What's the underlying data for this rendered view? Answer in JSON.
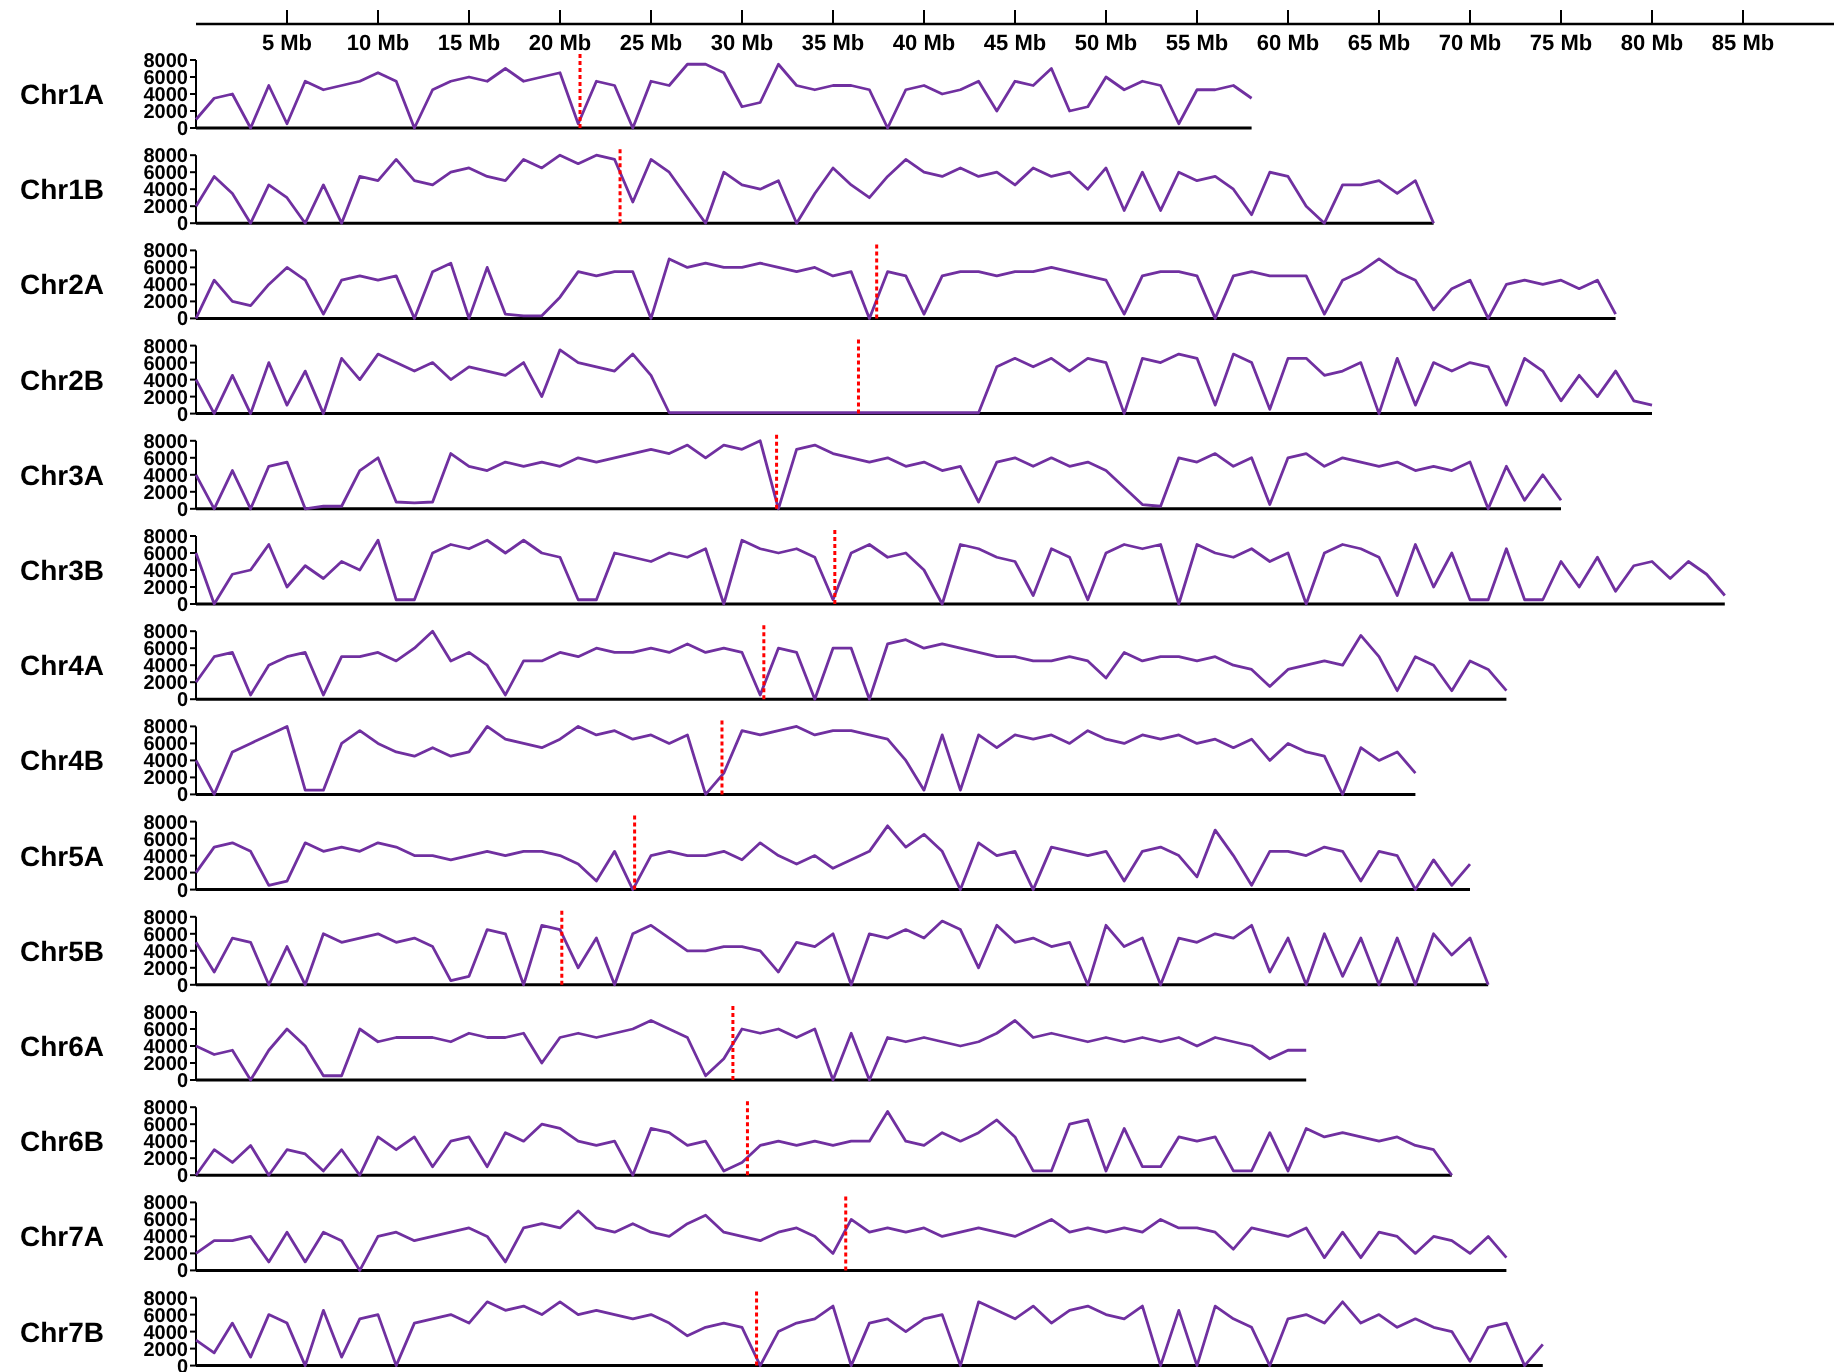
{
  "chart_data": [
    {
      "type": "line",
      "title": "Chr1A",
      "color": "#7030a0",
      "xlim": [
        0,
        90
      ],
      "ylim": [
        0,
        8000
      ],
      "yticks": [
        0,
        2000,
        4000,
        6000,
        8000
      ],
      "xticks": [
        {
          "value": 5,
          "label": "5 Mb"
        },
        {
          "value": 10,
          "label": "10 Mb"
        },
        {
          "value": 15,
          "label": "15 Mb"
        },
        {
          "value": 20,
          "label": "20 Mb"
        },
        {
          "value": 25,
          "label": "25 Mb"
        },
        {
          "value": 30,
          "label": "30 Mb"
        },
        {
          "value": 35,
          "label": "35 Mb"
        },
        {
          "value": 40,
          "label": "40 Mb"
        },
        {
          "value": 45,
          "label": "45 Mb"
        },
        {
          "value": 50,
          "label": "50 Mb"
        },
        {
          "value": 55,
          "label": "55 Mb"
        },
        {
          "value": 60,
          "label": "60 Mb"
        },
        {
          "value": 65,
          "label": "65 Mb"
        },
        {
          "value": 70,
          "label": "70 Mb"
        },
        {
          "value": 75,
          "label": "75 Mb"
        },
        {
          "value": 80,
          "label": "80 Mb"
        },
        {
          "value": 85,
          "label": "85 Mb"
        }
      ],
      "ref_lines": [
        {
          "axis": "x",
          "value": 21.1,
          "color": "#ff0000",
          "line_style": "dotted"
        }
      ],
      "x": [
        0,
        1,
        2,
        3,
        4,
        5,
        6,
        7,
        8,
        9,
        10,
        11,
        12,
        13,
        14,
        15,
        16,
        17,
        18,
        19,
        20,
        21,
        22,
        23,
        24,
        25,
        26,
        27,
        28,
        29,
        30,
        31,
        32,
        33,
        34,
        35,
        36,
        37,
        38,
        39,
        40,
        41,
        42,
        43,
        44,
        45,
        46,
        47,
        48,
        49,
        50,
        51,
        52,
        53,
        54,
        55,
        56,
        57,
        58
      ],
      "values": [
        1000,
        3500,
        4000,
        0,
        5000,
        500,
        5500,
        4500,
        5000,
        5500,
        6500,
        5500,
        0,
        4500,
        5500,
        6000,
        5500,
        7000,
        5500,
        6000,
        6500,
        500,
        5500,
        5000,
        0,
        5500,
        5000,
        7500,
        7500,
        6500,
        2500,
        3000,
        7500,
        5000,
        4500,
        5000,
        5000,
        4500,
        0,
        4500,
        5000,
        4000,
        4500,
        5500,
        2000,
        5500,
        5000,
        7000,
        2000,
        2500,
        6000,
        4500,
        5500,
        5000,
        500,
        4500,
        4500,
        5000,
        3500
      ]
    },
    {
      "type": "line",
      "title": "Chr1B",
      "color": "#7030a0",
      "xlim": [
        0,
        90
      ],
      "ylim": [
        0,
        8000
      ],
      "yticks": [
        0,
        2000,
        4000,
        6000,
        8000
      ],
      "tick_labels": "y",
      "ref_lines": [
        {
          "axis": "x",
          "value": 23.3,
          "color": "#ff0000",
          "line_style": "dotted"
        }
      ],
      "x": [
        0,
        1,
        2,
        3,
        4,
        5,
        6,
        7,
        8,
        9,
        10,
        11,
        12,
        13,
        14,
        15,
        16,
        17,
        18,
        19,
        20,
        21,
        22,
        23,
        24,
        25,
        26,
        27,
        28,
        29,
        30,
        31,
        32,
        33,
        34,
        35,
        36,
        37,
        38,
        39,
        40,
        41,
        42,
        43,
        44,
        45,
        46,
        47,
        48,
        49,
        50,
        51,
        52,
        53,
        54,
        55,
        56,
        57,
        58,
        59,
        60,
        61,
        62,
        63,
        64,
        65,
        66,
        67,
        68
      ],
      "values": [
        2000,
        5500,
        3500,
        0,
        4500,
        3000,
        0,
        4500,
        0,
        5500,
        5000,
        7500,
        5000,
        4500,
        6000,
        6500,
        5500,
        5000,
        7500,
        6500,
        8000,
        7000,
        8000,
        7500,
        2500,
        7500,
        6000,
        3000,
        0,
        6000,
        4500,
        4000,
        5000,
        0,
        3500,
        6500,
        4500,
        3000,
        5500,
        7500,
        6000,
        5500,
        6500,
        5500,
        6000,
        4500,
        6500,
        5500,
        6000,
        4000,
        6500,
        1500,
        6000,
        1500,
        6000,
        5000,
        5500,
        4000,
        1000,
        6000,
        5500,
        2000,
        0,
        4500,
        4500,
        5000,
        3500,
        5000,
        0
      ]
    },
    {
      "type": "line",
      "title": "Chr2A",
      "color": "#7030a0",
      "xlim": [
        0,
        90
      ],
      "ylim": [
        0,
        8000
      ],
      "yticks": [
        0,
        2000,
        4000,
        6000,
        8000
      ],
      "tick_labels": "y",
      "ref_lines": [
        {
          "axis": "x",
          "value": 37.4,
          "color": "#ff0000",
          "line_style": "dotted"
        }
      ],
      "x": [
        0,
        1,
        2,
        3,
        4,
        5,
        6,
        7,
        8,
        9,
        10,
        11,
        12,
        13,
        14,
        15,
        16,
        17,
        18,
        19,
        20,
        21,
        22,
        23,
        24,
        25,
        26,
        27,
        28,
        29,
        30,
        31,
        32,
        33,
        34,
        35,
        36,
        37,
        38,
        39,
        40,
        41,
        42,
        43,
        44,
        45,
        46,
        47,
        48,
        49,
        50,
        51,
        52,
        53,
        54,
        55,
        56,
        57,
        58,
        59,
        60,
        61,
        62,
        63,
        64,
        65,
        66,
        67,
        68,
        69,
        70,
        71,
        72,
        73,
        74,
        75,
        76,
        77,
        78
      ],
      "values": [
        0,
        4500,
        2000,
        1500,
        4000,
        6000,
        4500,
        500,
        4500,
        5000,
        4500,
        5000,
        0,
        5500,
        6500,
        0,
        6000,
        500,
        300,
        300,
        2500,
        5500,
        5000,
        5500,
        5500,
        0,
        7000,
        6000,
        6500,
        6000,
        6000,
        6500,
        6000,
        5500,
        6000,
        5000,
        5500,
        0,
        5500,
        5000,
        500,
        5000,
        5500,
        5500,
        5000,
        5500,
        5500,
        6000,
        5500,
        5000,
        4500,
        500,
        5000,
        5500,
        5500,
        5000,
        0,
        5000,
        5500,
        5000,
        5000,
        5000,
        500,
        4500,
        5500,
        7000,
        5500,
        4500,
        1000,
        3500,
        4500,
        0,
        4000,
        4500,
        4000,
        4500,
        3500,
        4500,
        500
      ]
    },
    {
      "type": "line",
      "title": "Chr2B",
      "color": "#7030a0",
      "xlim": [
        0,
        90
      ],
      "ylim": [
        0,
        8000
      ],
      "yticks": [
        0,
        2000,
        4000,
        6000,
        8000
      ],
      "tick_labels": "y",
      "ref_lines": [
        {
          "axis": "x",
          "value": 36.4,
          "color": "#ff0000",
          "line_style": "dotted"
        }
      ],
      "x": [
        0,
        1,
        2,
        3,
        4,
        5,
        6,
        7,
        8,
        9,
        10,
        11,
        12,
        13,
        14,
        15,
        16,
        17,
        18,
        19,
        20,
        21,
        22,
        23,
        24,
        25,
        26,
        43,
        44,
        45,
        46,
        47,
        48,
        49,
        50,
        51,
        52,
        53,
        54,
        55,
        56,
        57,
        58,
        59,
        60,
        61,
        62,
        63,
        64,
        65,
        66,
        67,
        68,
        69,
        70,
        71,
        72,
        73,
        74,
        75,
        76,
        77,
        78,
        79,
        80
      ],
      "values": [
        4000,
        0,
        4500,
        0,
        6000,
        1000,
        5000,
        0,
        6500,
        4000,
        7000,
        6000,
        5000,
        6000,
        4000,
        5500,
        5000,
        4500,
        6000,
        2000,
        7500,
        6000,
        5500,
        5000,
        7000,
        4500,
        100,
        100,
        5500,
        6500,
        5500,
        6500,
        5000,
        6500,
        6000,
        0,
        6500,
        6000,
        7000,
        6500,
        1000,
        7000,
        6000,
        500,
        6500,
        6500,
        4500,
        5000,
        6000,
        0,
        6500,
        1000,
        6000,
        5000,
        6000,
        5500,
        1000,
        6500,
        5000,
        1500,
        4500,
        2000,
        5000,
        1500,
        1000
      ]
    },
    {
      "type": "line",
      "title": "Chr3A",
      "color": "#7030a0",
      "xlim": [
        0,
        90
      ],
      "ylim": [
        0,
        8000
      ],
      "yticks": [
        0,
        2000,
        4000,
        6000,
        8000
      ],
      "tick_labels": "y",
      "ref_lines": [
        {
          "axis": "x",
          "value": 31.9,
          "color": "#ff0000",
          "line_style": "dotted"
        }
      ],
      "x": [
        0,
        1,
        2,
        3,
        4,
        5,
        6,
        7,
        8,
        9,
        10,
        11,
        12,
        13,
        14,
        15,
        16,
        17,
        18,
        19,
        20,
        21,
        22,
        23,
        24,
        25,
        26,
        27,
        28,
        29,
        30,
        31,
        32,
        33,
        34,
        35,
        36,
        37,
        38,
        39,
        40,
        41,
        42,
        43,
        44,
        45,
        46,
        47,
        48,
        49,
        50,
        51,
        52,
        53,
        54,
        55,
        56,
        57,
        58,
        59,
        60,
        61,
        62,
        63,
        64,
        65,
        66,
        67,
        68,
        69,
        70,
        71,
        72,
        73,
        74,
        75
      ],
      "values": [
        4000,
        0,
        4500,
        0,
        5000,
        5500,
        0,
        300,
        300,
        4500,
        6000,
        800,
        700,
        800,
        6500,
        5000,
        4500,
        5500,
        5000,
        5500,
        5000,
        6000,
        5500,
        6000,
        6500,
        7000,
        6500,
        7500,
        6000,
        7500,
        7000,
        8000,
        0,
        7000,
        7500,
        6500,
        6000,
        5500,
        6000,
        5000,
        5500,
        4500,
        5000,
        800,
        5500,
        6000,
        5000,
        6000,
        5000,
        5500,
        4500,
        2500,
        500,
        300,
        6000,
        5500,
        6500,
        5000,
        6000,
        500,
        6000,
        6500,
        5000,
        6000,
        5500,
        5000,
        5500,
        4500,
        5000,
        4500,
        5500,
        0,
        5000,
        1000,
        4000,
        1000
      ]
    },
    {
      "type": "line",
      "title": "Chr3B",
      "color": "#7030a0",
      "xlim": [
        0,
        90
      ],
      "ylim": [
        0,
        8000
      ],
      "yticks": [
        0,
        2000,
        4000,
        6000,
        8000
      ],
      "tick_labels": "y",
      "ref_lines": [
        {
          "axis": "x",
          "value": 35.1,
          "color": "#ff0000",
          "line_style": "dotted"
        }
      ],
      "x": [
        0,
        1,
        2,
        3,
        4,
        5,
        6,
        7,
        8,
        9,
        10,
        11,
        12,
        13,
        14,
        15,
        16,
        17,
        18,
        19,
        20,
        21,
        22,
        23,
        24,
        25,
        26,
        27,
        28,
        29,
        30,
        31,
        32,
        33,
        34,
        35,
        36,
        37,
        38,
        39,
        40,
        41,
        42,
        43,
        44,
        45,
        46,
        47,
        48,
        49,
        50,
        51,
        52,
        53,
        54,
        55,
        56,
        57,
        58,
        59,
        60,
        61,
        62,
        63,
        64,
        65,
        66,
        67,
        68,
        69,
        70,
        71,
        72,
        73,
        74,
        75,
        76,
        77,
        78,
        79,
        80,
        81,
        82,
        83,
        84
      ],
      "values": [
        6000,
        0,
        3500,
        4000,
        7000,
        2000,
        4500,
        3000,
        5000,
        4000,
        7500,
        500,
        500,
        6000,
        7000,
        6500,
        7500,
        6000,
        7500,
        6000,
        5500,
        500,
        500,
        6000,
        5500,
        5000,
        6000,
        5500,
        6500,
        0,
        7500,
        6500,
        6000,
        6500,
        5500,
        500,
        6000,
        7000,
        5500,
        6000,
        4000,
        0,
        7000,
        6500,
        5500,
        5000,
        1000,
        6500,
        5500,
        500,
        6000,
        7000,
        6500,
        7000,
        0,
        7000,
        6000,
        5500,
        6500,
        5000,
        6000,
        0,
        6000,
        7000,
        6500,
        5500,
        1000,
        7000,
        2000,
        6000,
        500,
        500,
        6500,
        500,
        500,
        5000,
        2000,
        5500,
        1500,
        4500,
        5000,
        3000,
        5000,
        3500,
        1000
      ]
    },
    {
      "type": "line",
      "title": "Chr4A",
      "color": "#7030a0",
      "xlim": [
        0,
        90
      ],
      "ylim": [
        0,
        8000
      ],
      "yticks": [
        0,
        2000,
        4000,
        6000,
        8000
      ],
      "tick_labels": "y",
      "ref_lines": [
        {
          "axis": "x",
          "value": 31.2,
          "color": "#ff0000",
          "line_style": "dotted"
        }
      ],
      "x": [
        0,
        1,
        2,
        3,
        4,
        5,
        6,
        7,
        8,
        9,
        10,
        11,
        12,
        13,
        14,
        15,
        16,
        17,
        18,
        19,
        20,
        21,
        22,
        23,
        24,
        25,
        26,
        27,
        28,
        29,
        30,
        31,
        32,
        33,
        34,
        35,
        36,
        37,
        38,
        39,
        40,
        41,
        42,
        43,
        44,
        45,
        46,
        47,
        48,
        49,
        50,
        51,
        52,
        53,
        54,
        55,
        56,
        57,
        58,
        59,
        60,
        61,
        62,
        63,
        64,
        65,
        66,
        67,
        68,
        69,
        70,
        71,
        72
      ],
      "values": [
        2000,
        5000,
        5500,
        500,
        4000,
        5000,
        5500,
        500,
        5000,
        5000,
        5500,
        4500,
        6000,
        8000,
        4500,
        5500,
        4000,
        500,
        4500,
        4500,
        5500,
        5000,
        6000,
        5500,
        5500,
        6000,
        5500,
        6500,
        5500,
        6000,
        5500,
        500,
        6000,
        5500,
        0,
        6000,
        6000,
        0,
        6500,
        7000,
        6000,
        6500,
        6000,
        5500,
        5000,
        5000,
        4500,
        4500,
        5000,
        4500,
        2500,
        5500,
        4500,
        5000,
        5000,
        4500,
        5000,
        4000,
        3500,
        1500,
        3500,
        4000,
        4500,
        4000,
        7500,
        5000,
        1000,
        5000,
        4000,
        1000,
        4500,
        3500,
        1000
      ]
    },
    {
      "type": "line",
      "title": "Chr4B",
      "color": "#7030a0",
      "xlim": [
        0,
        90
      ],
      "ylim": [
        0,
        8000
      ],
      "yticks": [
        0,
        2000,
        4000,
        6000,
        8000
      ],
      "tick_labels": "y",
      "ref_lines": [
        {
          "axis": "x",
          "value": 28.9,
          "color": "#ff0000",
          "line_style": "dotted"
        }
      ],
      "x": [
        0,
        1,
        2,
        3,
        4,
        5,
        6,
        7,
        8,
        9,
        10,
        11,
        12,
        13,
        14,
        15,
        16,
        17,
        18,
        19,
        20,
        21,
        22,
        23,
        24,
        25,
        26,
        27,
        28,
        29,
        30,
        31,
        32,
        33,
        34,
        35,
        36,
        37,
        38,
        39,
        40,
        41,
        42,
        43,
        44,
        45,
        46,
        47,
        48,
        49,
        50,
        51,
        52,
        53,
        54,
        55,
        56,
        57,
        58,
        59,
        60,
        61,
        62,
        63,
        64,
        65,
        66,
        67
      ],
      "values": [
        4000,
        0,
        5000,
        6000,
        7000,
        8000,
        500,
        500,
        6000,
        7500,
        6000,
        5000,
        4500,
        5500,
        4500,
        5000,
        8000,
        6500,
        6000,
        5500,
        6500,
        8000,
        7000,
        7500,
        6500,
        7000,
        6000,
        7000,
        0,
        2500,
        7500,
        7000,
        7500,
        8000,
        7000,
        7500,
        7500,
        7000,
        6500,
        4000,
        500,
        7000,
        500,
        7000,
        5500,
        7000,
        6500,
        7000,
        6000,
        7500,
        6500,
        6000,
        7000,
        6500,
        7000,
        6000,
        6500,
        5500,
        6500,
        4000,
        6000,
        5000,
        4500,
        0,
        5500,
        4000,
        5000,
        2500
      ]
    },
    {
      "type": "line",
      "title": "Chr5A",
      "color": "#7030a0",
      "xlim": [
        0,
        90
      ],
      "ylim": [
        0,
        8000
      ],
      "yticks": [
        0,
        2000,
        4000,
        6000,
        8000
      ],
      "tick_labels": "y",
      "ref_lines": [
        {
          "axis": "x",
          "value": 24.1,
          "color": "#ff0000",
          "line_style": "dotted"
        }
      ],
      "x": [
        0,
        1,
        2,
        3,
        4,
        5,
        6,
        7,
        8,
        9,
        10,
        11,
        12,
        13,
        14,
        15,
        16,
        17,
        18,
        19,
        20,
        21,
        22,
        23,
        24,
        25,
        26,
        27,
        28,
        29,
        30,
        31,
        32,
        33,
        34,
        35,
        36,
        37,
        38,
        39,
        40,
        41,
        42,
        43,
        44,
        45,
        46,
        47,
        48,
        49,
        50,
        51,
        52,
        53,
        54,
        55,
        56,
        57,
        58,
        59,
        60,
        61,
        62,
        63,
        64,
        65,
        66,
        67,
        68,
        69,
        70
      ],
      "values": [
        2000,
        5000,
        5500,
        4500,
        500,
        1000,
        5500,
        4500,
        5000,
        4500,
        5500,
        5000,
        4000,
        4000,
        3500,
        4000,
        4500,
        4000,
        4500,
        4500,
        4000,
        3000,
        1000,
        4500,
        0,
        4000,
        4500,
        4000,
        4000,
        4500,
        3500,
        5500,
        4000,
        3000,
        4000,
        2500,
        3500,
        4500,
        7500,
        5000,
        6500,
        4500,
        0,
        5500,
        4000,
        4500,
        0,
        5000,
        4500,
        4000,
        4500,
        1000,
        4500,
        5000,
        4000,
        1500,
        7000,
        4000,
        500,
        4500,
        4500,
        4000,
        5000,
        4500,
        1000,
        4500,
        4000,
        0,
        3500,
        500,
        3000
      ]
    },
    {
      "type": "line",
      "title": "Chr5B",
      "color": "#7030a0",
      "xlim": [
        0,
        90
      ],
      "ylim": [
        0,
        8000
      ],
      "yticks": [
        0,
        2000,
        4000,
        6000,
        8000
      ],
      "tick_labels": "y",
      "ref_lines": [
        {
          "axis": "x",
          "value": 20.1,
          "color": "#ff0000",
          "line_style": "dotted"
        }
      ],
      "x": [
        0,
        1,
        2,
        3,
        4,
        5,
        6,
        7,
        8,
        9,
        10,
        11,
        12,
        13,
        14,
        15,
        16,
        17,
        18,
        19,
        20,
        21,
        22,
        23,
        24,
        25,
        26,
        27,
        28,
        29,
        30,
        31,
        32,
        33,
        34,
        35,
        36,
        37,
        38,
        39,
        40,
        41,
        42,
        43,
        44,
        45,
        46,
        47,
        48,
        49,
        50,
        51,
        52,
        53,
        54,
        55,
        56,
        57,
        58,
        59,
        60,
        61,
        62,
        63,
        64,
        65,
        66,
        67,
        68,
        69,
        70,
        71
      ],
      "values": [
        5000,
        1500,
        5500,
        5000,
        0,
        4500,
        0,
        6000,
        5000,
        5500,
        6000,
        5000,
        5500,
        4500,
        500,
        1000,
        6500,
        6000,
        0,
        7000,
        6500,
        2000,
        5500,
        0,
        6000,
        7000,
        5500,
        4000,
        4000,
        4500,
        4500,
        4000,
        1500,
        5000,
        4500,
        6000,
        0,
        6000,
        5500,
        6500,
        5500,
        7500,
        6500,
        2000,
        7000,
        5000,
        5500,
        4500,
        5000,
        0,
        7000,
        4500,
        5500,
        0,
        5500,
        5000,
        6000,
        5500,
        7000,
        1500,
        5500,
        0,
        6000,
        1000,
        5500,
        0,
        5500,
        0,
        6000,
        3500,
        5500,
        0
      ]
    },
    {
      "type": "line",
      "title": "Chr6A",
      "color": "#7030a0",
      "xlim": [
        0,
        90
      ],
      "ylim": [
        0,
        8000
      ],
      "yticks": [
        0,
        2000,
        4000,
        6000,
        8000
      ],
      "tick_labels": "y",
      "ref_lines": [
        {
          "axis": "x",
          "value": 29.5,
          "color": "#ff0000",
          "line_style": "dotted"
        }
      ],
      "x": [
        0,
        1,
        2,
        3,
        4,
        5,
        6,
        7,
        8,
        9,
        10,
        11,
        12,
        13,
        14,
        15,
        16,
        17,
        18,
        19,
        20,
        21,
        22,
        23,
        24,
        25,
        26,
        27,
        28,
        29,
        30,
        31,
        32,
        33,
        34,
        35,
        36,
        37,
        38,
        39,
        40,
        41,
        42,
        43,
        44,
        45,
        46,
        47,
        48,
        49,
        50,
        51,
        52,
        53,
        54,
        55,
        56,
        57,
        58,
        59,
        60,
        61
      ],
      "values": [
        4000,
        3000,
        3500,
        0,
        3500,
        6000,
        4000,
        500,
        500,
        6000,
        4500,
        5000,
        5000,
        5000,
        4500,
        5500,
        5000,
        5000,
        5500,
        2000,
        5000,
        5500,
        5000,
        5500,
        6000,
        7000,
        6000,
        5000,
        500,
        2500,
        6000,
        5500,
        6000,
        5000,
        6000,
        0,
        5500,
        0,
        5000,
        4500,
        5000,
        4500,
        4000,
        4500,
        5500,
        7000,
        5000,
        5500,
        5000,
        4500,
        5000,
        4500,
        5000,
        4500,
        5000,
        4000,
        5000,
        4500,
        4000,
        2500,
        3500,
        3500
      ]
    },
    {
      "type": "line",
      "title": "Chr6B",
      "color": "#7030a0",
      "xlim": [
        0,
        90
      ],
      "ylim": [
        0,
        8000
      ],
      "yticks": [
        0,
        2000,
        4000,
        6000,
        8000
      ],
      "tick_labels": "y",
      "ref_lines": [
        {
          "axis": "x",
          "value": 30.3,
          "color": "#ff0000",
          "line_style": "dotted"
        }
      ],
      "x": [
        0,
        1,
        2,
        3,
        4,
        5,
        6,
        7,
        8,
        9,
        10,
        11,
        12,
        13,
        14,
        15,
        16,
        17,
        18,
        19,
        20,
        21,
        22,
        23,
        24,
        25,
        26,
        27,
        28,
        29,
        30,
        31,
        32,
        33,
        34,
        35,
        36,
        37,
        38,
        39,
        40,
        41,
        42,
        43,
        44,
        45,
        46,
        47,
        48,
        49,
        50,
        51,
        52,
        53,
        54,
        55,
        56,
        57,
        58,
        59,
        60,
        61,
        62,
        63,
        64,
        65,
        66,
        67,
        68,
        69
      ],
      "values": [
        0,
        3000,
        1500,
        3500,
        0,
        3000,
        2500,
        500,
        3000,
        0,
        4500,
        3000,
        4500,
        1000,
        4000,
        4500,
        1000,
        5000,
        4000,
        6000,
        5500,
        4000,
        3500,
        4000,
        0,
        5500,
        5000,
        3500,
        4000,
        500,
        1500,
        3500,
        4000,
        3500,
        4000,
        3500,
        4000,
        4000,
        7500,
        4000,
        3500,
        5000,
        4000,
        5000,
        6500,
        4500,
        500,
        500,
        6000,
        6500,
        500,
        5500,
        1000,
        1000,
        4500,
        4000,
        4500,
        500,
        500,
        5000,
        500,
        5500,
        4500,
        5000,
        4500,
        4000,
        4500,
        3500,
        3000,
        0
      ]
    },
    {
      "type": "line",
      "title": "Chr7A",
      "color": "#7030a0",
      "xlim": [
        0,
        90
      ],
      "ylim": [
        0,
        8000
      ],
      "yticks": [
        0,
        2000,
        4000,
        6000,
        8000
      ],
      "tick_labels": "y",
      "ref_lines": [
        {
          "axis": "x",
          "value": 35.7,
          "color": "#ff0000",
          "line_style": "dotted"
        }
      ],
      "x": [
        0,
        1,
        2,
        3,
        4,
        5,
        6,
        7,
        8,
        9,
        10,
        11,
        12,
        13,
        14,
        15,
        16,
        17,
        18,
        19,
        20,
        21,
        22,
        23,
        24,
        25,
        26,
        27,
        28,
        29,
        30,
        31,
        32,
        33,
        34,
        35,
        36,
        37,
        38,
        39,
        40,
        41,
        42,
        43,
        44,
        45,
        46,
        47,
        48,
        49,
        50,
        51,
        52,
        53,
        54,
        55,
        56,
        57,
        58,
        59,
        60,
        61,
        62,
        63,
        64,
        65,
        66,
        67,
        68,
        69,
        70,
        71,
        72
      ],
      "values": [
        2000,
        3500,
        3500,
        4000,
        1000,
        4500,
        1000,
        4500,
        3500,
        0,
        4000,
        4500,
        3500,
        4000,
        4500,
        5000,
        4000,
        1000,
        5000,
        5500,
        5000,
        7000,
        5000,
        4500,
        5500,
        4500,
        4000,
        5500,
        6500,
        4500,
        4000,
        3500,
        4500,
        5000,
        4000,
        2000,
        6000,
        4500,
        5000,
        4500,
        5000,
        4000,
        4500,
        5000,
        4500,
        4000,
        5000,
        6000,
        4500,
        5000,
        4500,
        5000,
        4500,
        6000,
        5000,
        5000,
        4500,
        2500,
        5000,
        4500,
        4000,
        5000,
        1500,
        4500,
        1500,
        4500,
        4000,
        2000,
        4000,
        3500,
        2000,
        4000,
        1500
      ]
    },
    {
      "type": "line",
      "title": "Chr7B",
      "color": "#7030a0",
      "xlim": [
        0,
        90
      ],
      "ylim": [
        0,
        8000
      ],
      "yticks": [
        0,
        2000,
        4000,
        6000,
        8000
      ],
      "tick_labels": "y",
      "ref_lines": [
        {
          "axis": "x",
          "value": 30.8,
          "color": "#ff0000",
          "line_style": "dotted"
        }
      ],
      "x": [
        0,
        1,
        2,
        3,
        4,
        5,
        6,
        7,
        8,
        9,
        10,
        11,
        12,
        13,
        14,
        15,
        16,
        17,
        18,
        19,
        20,
        21,
        22,
        23,
        24,
        25,
        26,
        27,
        28,
        29,
        30,
        31,
        32,
        33,
        34,
        35,
        36,
        37,
        38,
        39,
        40,
        41,
        42,
        43,
        44,
        45,
        46,
        47,
        48,
        49,
        50,
        51,
        52,
        53,
        54,
        55,
        56,
        57,
        58,
        59,
        60,
        61,
        62,
        63,
        64,
        65,
        66,
        67,
        68,
        69,
        70,
        71,
        72,
        73,
        74
      ],
      "values": [
        3000,
        1500,
        5000,
        1000,
        6000,
        5000,
        0,
        6500,
        1000,
        5500,
        6000,
        0,
        5000,
        5500,
        6000,
        5000,
        7500,
        6500,
        7000,
        6000,
        7500,
        6000,
        6500,
        6000,
        5500,
        6000,
        5000,
        3500,
        4500,
        5000,
        4500,
        0,
        4000,
        5000,
        5500,
        7000,
        0,
        5000,
        5500,
        4000,
        5500,
        6000,
        0,
        7500,
        6500,
        5500,
        7000,
        5000,
        6500,
        7000,
        6000,
        5500,
        7000,
        0,
        6500,
        0,
        7000,
        5500,
        4500,
        0,
        5500,
        6000,
        5000,
        7500,
        5000,
        6000,
        4500,
        5500,
        4500,
        4000,
        500,
        4500,
        5000,
        0,
        2500
      ]
    }
  ]
}
